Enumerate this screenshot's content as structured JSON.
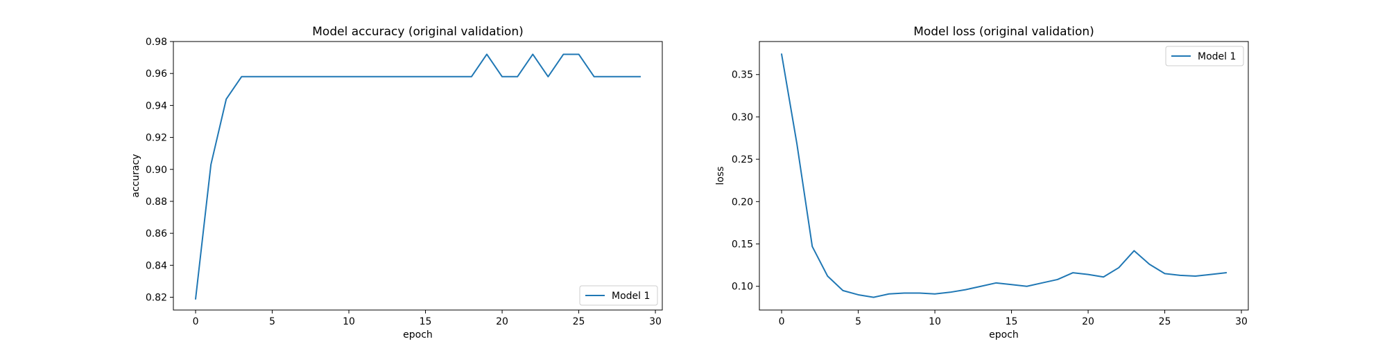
{
  "chart_data": [
    {
      "type": "line",
      "title": "Model accuracy (original validation)",
      "xlabel": "epoch",
      "ylabel": "accuracy",
      "xlim": [
        -1.45,
        30.45
      ],
      "ylim": [
        0.812,
        0.98
      ],
      "xticks": [
        0,
        5,
        10,
        15,
        20,
        25,
        30
      ],
      "yticks": [
        0.82,
        0.84,
        0.86,
        0.88,
        0.9,
        0.92,
        0.94,
        0.96,
        0.98
      ],
      "ytick_labels": [
        "0.82",
        "0.84",
        "0.86",
        "0.88",
        "0.90",
        "0.92",
        "0.94",
        "0.96",
        "0.98"
      ],
      "grid": false,
      "legend_position": "lower-right",
      "x": [
        0,
        1,
        2,
        3,
        4,
        5,
        6,
        7,
        8,
        9,
        10,
        11,
        12,
        13,
        14,
        15,
        16,
        17,
        18,
        19,
        20,
        21,
        22,
        23,
        24,
        25,
        26,
        27,
        28,
        29
      ],
      "series": [
        {
          "name": "Model 1",
          "color": "#1f77b4",
          "values": [
            0.819,
            0.903,
            0.944,
            0.958,
            0.958,
            0.958,
            0.958,
            0.958,
            0.958,
            0.958,
            0.958,
            0.958,
            0.958,
            0.958,
            0.958,
            0.958,
            0.958,
            0.958,
            0.958,
            0.972,
            0.958,
            0.958,
            0.972,
            0.958,
            0.972,
            0.972,
            0.958,
            0.958,
            0.958,
            0.958
          ]
        }
      ]
    },
    {
      "type": "line",
      "title": "Model loss (original validation)",
      "xlabel": "epoch",
      "ylabel": "loss",
      "xlim": [
        -1.45,
        30.45
      ],
      "ylim": [
        0.072,
        0.389
      ],
      "xticks": [
        0,
        5,
        10,
        15,
        20,
        25,
        30
      ],
      "yticks": [
        0.1,
        0.15,
        0.2,
        0.25,
        0.3,
        0.35
      ],
      "ytick_labels": [
        "0.10",
        "0.15",
        "0.20",
        "0.25",
        "0.30",
        "0.35"
      ],
      "grid": false,
      "legend_position": "upper-right",
      "x": [
        0,
        1,
        2,
        3,
        4,
        5,
        6,
        7,
        8,
        9,
        10,
        11,
        12,
        13,
        14,
        15,
        16,
        17,
        18,
        19,
        20,
        21,
        22,
        23,
        24,
        25,
        26,
        27,
        28,
        29
      ],
      "series": [
        {
          "name": "Model 1",
          "color": "#1f77b4",
          "values": [
            0.374,
            0.268,
            0.147,
            0.112,
            0.095,
            0.09,
            0.087,
            0.091,
            0.092,
            0.092,
            0.091,
            0.093,
            0.096,
            0.1,
            0.104,
            0.102,
            0.1,
            0.104,
            0.108,
            0.116,
            0.114,
            0.111,
            0.122,
            0.142,
            0.126,
            0.115,
            0.113,
            0.112,
            0.114,
            0.116
          ]
        }
      ]
    }
  ]
}
